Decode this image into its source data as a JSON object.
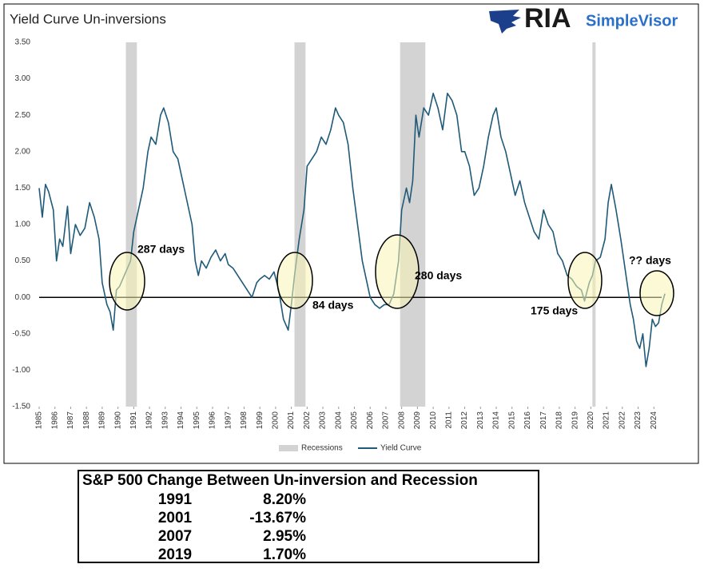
{
  "chart_data": {
    "type": "line",
    "title": "Yield Curve Un-inversions",
    "xlim": [
      1985,
      2025
    ],
    "xticks": [
      1985,
      1986,
      1987,
      1988,
      1989,
      1990,
      1991,
      1992,
      1993,
      1994,
      1995,
      1996,
      1997,
      1998,
      1999,
      2000,
      2001,
      2002,
      2003,
      2004,
      2005,
      2006,
      2007,
      2008,
      2009,
      2010,
      2011,
      2012,
      2013,
      2014,
      2015,
      2016,
      2017,
      2018,
      2019,
      2020,
      2021,
      2022,
      2023,
      2024
    ],
    "ylim": [
      -1.5,
      3.5
    ],
    "yticks": [
      {
        "value": -1.5,
        "label": "-1.50"
      },
      {
        "value": -1,
        "label": "-1.00"
      },
      {
        "value": -0.5,
        "label": "-0.50"
      },
      {
        "value": 0,
        "label": "0.00"
      },
      {
        "value": 0.5,
        "label": "0.50"
      },
      {
        "value": 1,
        "label": "1.00"
      },
      {
        "value": 1.5,
        "label": "1.50"
      },
      {
        "value": 2,
        "label": "2.00"
      },
      {
        "value": 2.5,
        "label": "2.50"
      },
      {
        "value": 3,
        "label": "3.00"
      },
      {
        "value": 3.5,
        "label": "3.50"
      }
    ],
    "recessions_name": "Recessions",
    "recessions_color": "#d3d3d3",
    "recessions": [
      [
        1990.5,
        1991.2
      ],
      [
        2001.2,
        2001.9
      ],
      [
        2007.9,
        2009.5
      ],
      [
        2020.1,
        2020.3
      ]
    ],
    "x": [
      1985.0,
      1985.2,
      1985.4,
      1985.6,
      1985.9,
      1986.1,
      1986.3,
      1986.5,
      1986.8,
      1987.0,
      1987.3,
      1987.6,
      1987.9,
      1988.2,
      1988.5,
      1988.8,
      1989.0,
      1989.3,
      1989.5,
      1989.7,
      1989.9,
      1990.1,
      1990.4,
      1990.6,
      1990.8,
      1991.0,
      1991.3,
      1991.6,
      1991.9,
      1992.1,
      1992.4,
      1992.7,
      1992.9,
      1993.2,
      1993.5,
      1993.8,
      1994.1,
      1994.4,
      1994.7,
      1994.9,
      1995.1,
      1995.3,
      1995.6,
      1995.9,
      1996.2,
      1996.5,
      1996.8,
      1997.0,
      1997.3,
      1997.6,
      1997.9,
      1998.2,
      1998.5,
      1998.8,
      1999.0,
      1999.3,
      1999.6,
      1999.9,
      2000.2,
      2000.5,
      2000.8,
      2001.0,
      2001.2,
      2001.5,
      2001.8,
      2002.0,
      2002.3,
      2002.6,
      2002.9,
      2003.2,
      2003.5,
      2003.8,
      2004.0,
      2004.3,
      2004.6,
      2004.9,
      2005.2,
      2005.5,
      2005.8,
      2006.0,
      2006.3,
      2006.6,
      2006.9,
      2007.2,
      2007.5,
      2007.8,
      2008.0,
      2008.3,
      2008.5,
      2008.7,
      2008.9,
      2009.1,
      2009.4,
      2009.7,
      2010.0,
      2010.3,
      2010.6,
      2010.9,
      2011.2,
      2011.5,
      2011.8,
      2012.0,
      2012.3,
      2012.6,
      2012.9,
      2013.2,
      2013.5,
      2013.8,
      2014.0,
      2014.3,
      2014.6,
      2014.9,
      2015.2,
      2015.5,
      2015.8,
      2016.1,
      2016.4,
      2016.7,
      2017.0,
      2017.3,
      2017.6,
      2017.9,
      2018.2,
      2018.5,
      2018.8,
      2019.1,
      2019.4,
      2019.6,
      2019.9,
      2020.1,
      2020.3,
      2020.6,
      2020.9,
      2021.1,
      2021.3,
      2021.6,
      2021.9,
      2022.1,
      2022.3,
      2022.5,
      2022.7,
      2022.9,
      2023.1,
      2023.3,
      2023.5,
      2023.7,
      2023.9,
      2024.1,
      2024.3,
      2024.5,
      2024.7
    ],
    "series": [
      {
        "name": "Yield Curve",
        "color": "#1f5a78",
        "values": [
          1.5,
          1.1,
          1.55,
          1.45,
          1.2,
          0.5,
          0.8,
          0.7,
          1.25,
          0.6,
          1.0,
          0.85,
          0.95,
          1.3,
          1.1,
          0.8,
          0.2,
          -0.1,
          -0.2,
          -0.45,
          0.1,
          0.15,
          0.3,
          0.4,
          0.5,
          0.9,
          1.2,
          1.5,
          2.0,
          2.2,
          2.1,
          2.5,
          2.6,
          2.4,
          2.0,
          1.9,
          1.6,
          1.3,
          1.0,
          0.5,
          0.3,
          0.5,
          0.4,
          0.55,
          0.65,
          0.5,
          0.6,
          0.45,
          0.4,
          0.3,
          0.2,
          0.1,
          0.0,
          0.2,
          0.25,
          0.3,
          0.25,
          0.35,
          0.1,
          -0.3,
          -0.45,
          -0.1,
          0.3,
          0.8,
          1.2,
          1.8,
          1.9,
          2.0,
          2.2,
          2.1,
          2.3,
          2.6,
          2.5,
          2.4,
          2.1,
          1.5,
          1.0,
          0.5,
          0.2,
          0.0,
          -0.1,
          -0.15,
          -0.1,
          -0.1,
          0.05,
          0.5,
          1.2,
          1.5,
          1.3,
          1.6,
          2.5,
          2.2,
          2.6,
          2.5,
          2.8,
          2.6,
          2.3,
          2.8,
          2.7,
          2.5,
          2.0,
          2.0,
          1.8,
          1.4,
          1.5,
          1.8,
          2.2,
          2.5,
          2.6,
          2.2,
          2.0,
          1.7,
          1.4,
          1.6,
          1.3,
          1.1,
          0.9,
          0.8,
          1.2,
          1.0,
          0.9,
          0.6,
          0.5,
          0.3,
          0.25,
          0.15,
          0.1,
          -0.05,
          0.2,
          0.3,
          0.5,
          0.55,
          0.8,
          1.3,
          1.55,
          1.2,
          0.8,
          0.5,
          0.2,
          -0.1,
          -0.3,
          -0.6,
          -0.7,
          -0.5,
          -0.95,
          -0.7,
          -0.3,
          -0.4,
          -0.35,
          -0.1,
          0.05
        ]
      }
    ],
    "annotations": [
      "287 days",
      "84 days",
      "280 days",
      "175 days",
      "?? days"
    ]
  },
  "logo": {
    "brand": "RIA",
    "product": "SimpleVisor"
  },
  "table": {
    "title": "S&P 500 Change Between Un-inversion and Recession",
    "rows": [
      [
        "1991",
        "8.20%"
      ],
      [
        "2001",
        "-13.67%"
      ],
      [
        "2007",
        "2.95%"
      ],
      [
        "2019",
        "1.70%"
      ]
    ]
  }
}
